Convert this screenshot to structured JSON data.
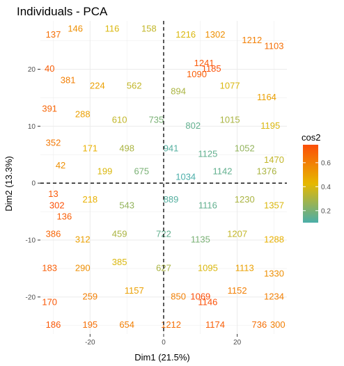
{
  "chart_data": {
    "type": "scatter",
    "title": "Individuals - PCA",
    "xlabel": "Dim1 (21.5%)",
    "ylabel": "Dim2 (13.3%)",
    "xlim": [
      -33.5,
      33.5
    ],
    "ylim": [
      -26.5,
      28.5
    ],
    "x_ticks": [
      -20,
      0,
      20
    ],
    "y_ticks": [
      -20,
      -10,
      0,
      10,
      20
    ],
    "grid": true,
    "reference_lines": {
      "x": 0,
      "y": 0,
      "style": "dashed"
    },
    "point_labels": "row indices (dense, overlapping)",
    "legend": {
      "title": "cos2",
      "position": "right",
      "range": [
        0.1,
        0.75
      ],
      "ticks": [
        0.2,
        0.4,
        0.6
      ]
    },
    "colors": {
      "low": "#4aaea9",
      "mid": "#e6b800",
      "high": "#fc4e08",
      "grid": "#ebebeb",
      "reference": "#000000"
    },
    "series": [
      {
        "x": -30,
        "y": 26,
        "cos2": 0.65,
        "label": "137"
      },
      {
        "x": -24,
        "y": 27,
        "cos2": 0.55,
        "label": "146"
      },
      {
        "x": -14,
        "y": 27,
        "cos2": 0.4,
        "label": "116"
      },
      {
        "x": -4,
        "y": 27,
        "cos2": 0.35,
        "label": "158"
      },
      {
        "x": 6,
        "y": 26,
        "cos2": 0.4,
        "label": "1216"
      },
      {
        "x": 14,
        "y": 26,
        "cos2": 0.55,
        "label": "1302"
      },
      {
        "x": 24,
        "y": 25,
        "cos2": 0.6,
        "label": "1212"
      },
      {
        "x": 30,
        "y": 24,
        "cos2": 0.65,
        "label": "1103"
      },
      {
        "x": 11,
        "y": 21,
        "cos2": 0.72,
        "label": "1241"
      },
      {
        "x": 13,
        "y": 20,
        "cos2": 0.74,
        "label": "1185"
      },
      {
        "x": 9,
        "y": 19,
        "cos2": 0.7,
        "label": "1090"
      },
      {
        "x": -31,
        "y": 20,
        "cos2": 0.7,
        "label": "40"
      },
      {
        "x": -26,
        "y": 18,
        "cos2": 0.6,
        "label": "381"
      },
      {
        "x": -18,
        "y": 17,
        "cos2": 0.5,
        "label": "224"
      },
      {
        "x": -8,
        "y": 17,
        "cos2": 0.35,
        "label": "562"
      },
      {
        "x": 4,
        "y": 16,
        "cos2": 0.3,
        "label": "894"
      },
      {
        "x": 18,
        "y": 17,
        "cos2": 0.4,
        "label": "1077"
      },
      {
        "x": 28,
        "y": 15,
        "cos2": 0.5,
        "label": "1164"
      },
      {
        "x": -31,
        "y": 13,
        "cos2": 0.68,
        "label": "391"
      },
      {
        "x": -22,
        "y": 12,
        "cos2": 0.5,
        "label": "288"
      },
      {
        "x": -12,
        "y": 11,
        "cos2": 0.35,
        "label": "610"
      },
      {
        "x": -2,
        "y": 11,
        "cos2": 0.2,
        "label": "735"
      },
      {
        "x": 8,
        "y": 10,
        "cos2": 0.15,
        "label": "802"
      },
      {
        "x": 18,
        "y": 11,
        "cos2": 0.3,
        "label": "1015"
      },
      {
        "x": 29,
        "y": 10,
        "cos2": 0.4,
        "label": "1195"
      },
      {
        "x": -30,
        "y": 7,
        "cos2": 0.62,
        "label": "352"
      },
      {
        "x": -20,
        "y": 6,
        "cos2": 0.45,
        "label": "171"
      },
      {
        "x": -10,
        "y": 6,
        "cos2": 0.3,
        "label": "498"
      },
      {
        "x": 2,
        "y": 6,
        "cos2": 0.12,
        "label": "941"
      },
      {
        "x": 12,
        "y": 5,
        "cos2": 0.15,
        "label": "1125"
      },
      {
        "x": 22,
        "y": 6,
        "cos2": 0.25,
        "label": "1052"
      },
      {
        "x": 30,
        "y": 4,
        "cos2": 0.35,
        "label": "1470"
      },
      {
        "x": -28,
        "y": 3,
        "cos2": 0.55,
        "label": "42"
      },
      {
        "x": -16,
        "y": 2,
        "cos2": 0.4,
        "label": "199"
      },
      {
        "x": -6,
        "y": 2,
        "cos2": 0.2,
        "label": "675"
      },
      {
        "x": 6,
        "y": 1,
        "cos2": 0.1,
        "label": "1034"
      },
      {
        "x": 16,
        "y": 2,
        "cos2": 0.15,
        "label": "1142"
      },
      {
        "x": 28,
        "y": 2,
        "cos2": 0.3,
        "label": "1376"
      },
      {
        "x": -30,
        "y": -2,
        "cos2": 0.72,
        "label": "13"
      },
      {
        "x": -29,
        "y": -4,
        "cos2": 0.74,
        "label": "302"
      },
      {
        "x": -27,
        "y": -6,
        "cos2": 0.7,
        "label": "136"
      },
      {
        "x": -20,
        "y": -3,
        "cos2": 0.45,
        "label": "218"
      },
      {
        "x": -10,
        "y": -4,
        "cos2": 0.25,
        "label": "543"
      },
      {
        "x": 2,
        "y": -3,
        "cos2": 0.12,
        "label": "889"
      },
      {
        "x": 12,
        "y": -4,
        "cos2": 0.15,
        "label": "1116"
      },
      {
        "x": 22,
        "y": -3,
        "cos2": 0.3,
        "label": "1230"
      },
      {
        "x": 30,
        "y": -4,
        "cos2": 0.4,
        "label": "1357"
      },
      {
        "x": -30,
        "y": -9,
        "cos2": 0.68,
        "label": "386"
      },
      {
        "x": -22,
        "y": -10,
        "cos2": 0.5,
        "label": "312"
      },
      {
        "x": -12,
        "y": -9,
        "cos2": 0.3,
        "label": "459"
      },
      {
        "x": 0,
        "y": -9,
        "cos2": 0.15,
        "label": "722"
      },
      {
        "x": 10,
        "y": -10,
        "cos2": 0.2,
        "label": "1135"
      },
      {
        "x": 20,
        "y": -9,
        "cos2": 0.35,
        "label": "1207"
      },
      {
        "x": 30,
        "y": -10,
        "cos2": 0.45,
        "label": "1288"
      },
      {
        "x": -31,
        "y": -15,
        "cos2": 0.7,
        "label": "183"
      },
      {
        "x": -22,
        "y": -15,
        "cos2": 0.55,
        "label": "290"
      },
      {
        "x": -12,
        "y": -14,
        "cos2": 0.4,
        "label": "385"
      },
      {
        "x": 0,
        "y": -15,
        "cos2": 0.3,
        "label": "627"
      },
      {
        "x": 12,
        "y": -15,
        "cos2": 0.4,
        "label": "1095"
      },
      {
        "x": 22,
        "y": -15,
        "cos2": 0.5,
        "label": "1113"
      },
      {
        "x": 30,
        "y": -16,
        "cos2": 0.55,
        "label": "1330"
      },
      {
        "x": -31,
        "y": -21,
        "cos2": 0.72,
        "label": "170"
      },
      {
        "x": -20,
        "y": -20,
        "cos2": 0.6,
        "label": "259"
      },
      {
        "x": -8,
        "y": -19,
        "cos2": 0.5,
        "label": "1157"
      },
      {
        "x": 4,
        "y": -20,
        "cos2": 0.6,
        "label": "850"
      },
      {
        "x": 10,
        "y": -20,
        "cos2": 0.75,
        "label": "1069"
      },
      {
        "x": 12,
        "y": -21,
        "cos2": 0.74,
        "label": "1146"
      },
      {
        "x": 20,
        "y": -19,
        "cos2": 0.6,
        "label": "1152"
      },
      {
        "x": 30,
        "y": -20,
        "cos2": 0.6,
        "label": "1234"
      },
      {
        "x": -30,
        "y": -25,
        "cos2": 0.72,
        "label": "186"
      },
      {
        "x": -20,
        "y": -25,
        "cos2": 0.65,
        "label": "195"
      },
      {
        "x": -10,
        "y": -25,
        "cos2": 0.6,
        "label": "654"
      },
      {
        "x": 2,
        "y": -25,
        "cos2": 0.65,
        "label": "1212"
      },
      {
        "x": 14,
        "y": -25,
        "cos2": 0.7,
        "label": "1174"
      },
      {
        "x": 26,
        "y": -25,
        "cos2": 0.65,
        "label": "736"
      },
      {
        "x": 31,
        "y": -25,
        "cos2": 0.6,
        "label": "300"
      }
    ]
  }
}
